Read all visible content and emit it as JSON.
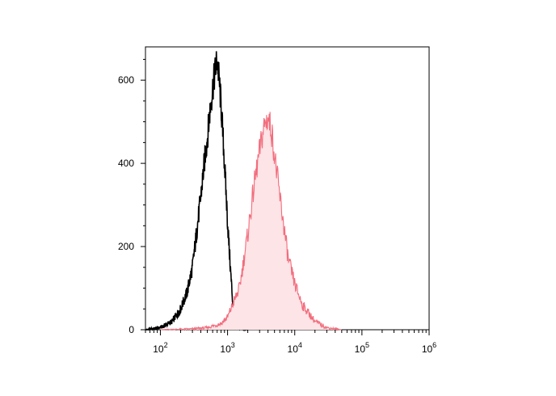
{
  "chart_data": {
    "type": "area",
    "title": "",
    "xlabel": "",
    "ylabel": "",
    "x_scale": "log",
    "xlim": [
      60,
      1000000
    ],
    "ylim": [
      0,
      680
    ],
    "x_ticks": [
      {
        "value": 100,
        "base": "10",
        "exp": "2"
      },
      {
        "value": 1000,
        "base": "10",
        "exp": "3"
      },
      {
        "value": 10000,
        "base": "10",
        "exp": "4"
      },
      {
        "value": 100000,
        "base": "10",
        "exp": "5"
      },
      {
        "value": 1000000,
        "base": "10",
        "exp": "6"
      }
    ],
    "y_ticks": [
      {
        "value": 0,
        "label": "0"
      },
      {
        "value": 200,
        "label": "200"
      },
      {
        "value": 400,
        "label": "400"
      },
      {
        "value": 600,
        "label": "600"
      }
    ],
    "grid": false,
    "legend": "none",
    "series": [
      {
        "style": "line",
        "color": "#000000",
        "x": [
          60,
          100,
          150,
          200,
          250,
          300,
          350,
          400,
          450,
          500,
          550,
          600,
          650,
          700,
          750,
          800,
          850,
          900,
          1000,
          1100,
          1200,
          1300,
          1500,
          2000
        ],
        "y": [
          0,
          5,
          20,
          50,
          90,
          150,
          240,
          320,
          400,
          460,
          530,
          580,
          620,
          650,
          600,
          540,
          470,
          400,
          260,
          150,
          60,
          20,
          5,
          0
        ]
      },
      {
        "style": "filled",
        "color": "#f26d7d",
        "fill": "#fde4e6",
        "x": [
          100,
          300,
          500,
          800,
          1000,
          1500,
          2000,
          2500,
          3000,
          3500,
          4000,
          4500,
          5000,
          6000,
          7000,
          8000,
          10000,
          13000,
          20000,
          30000,
          50000
        ],
        "y": [
          0,
          2,
          5,
          15,
          30,
          100,
          230,
          350,
          430,
          490,
          510,
          480,
          420,
          320,
          240,
          170,
          110,
          60,
          20,
          5,
          0
        ]
      }
    ]
  }
}
